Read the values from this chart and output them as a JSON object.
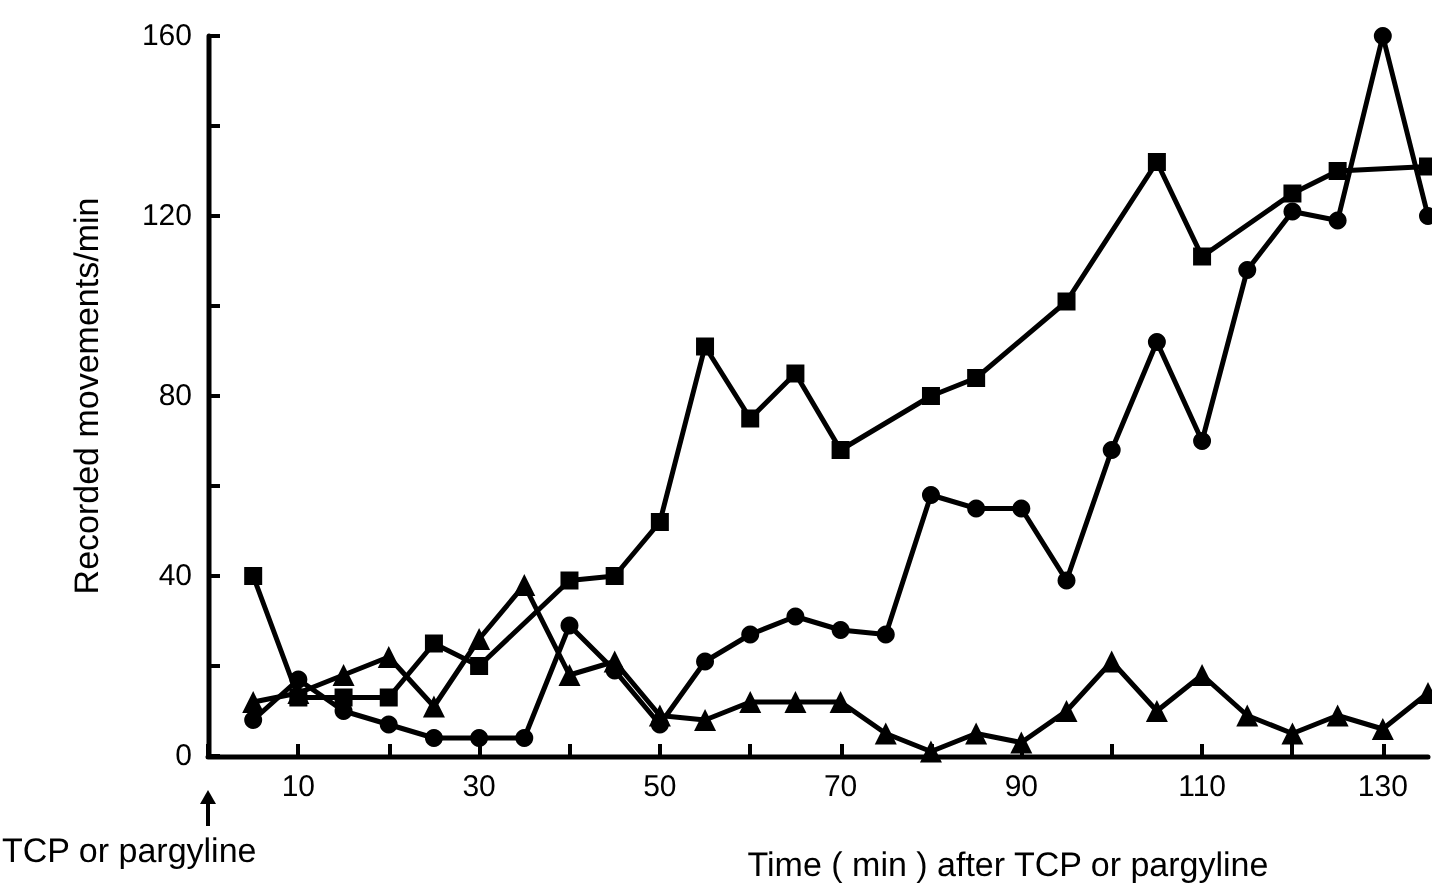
{
  "chart_data": {
    "type": "line",
    "xlabel": "Time ( min ) after TCP or pargyline",
    "ylabel": "Recorded movements/min",
    "xlim": [
      0,
      135
    ],
    "ylim": [
      0,
      160
    ],
    "xticks": [
      {
        "value": 0,
        "label": null
      },
      10,
      {
        "value": 20,
        "label": null
      },
      30,
      {
        "value": 40,
        "label": null
      },
      50,
      {
        "value": 60,
        "label": null
      },
      70,
      {
        "value": 80,
        "label": null
      },
      90,
      {
        "value": 100,
        "label": null
      },
      110,
      {
        "value": 120,
        "label": null
      },
      130
    ],
    "yticks": [
      0,
      {
        "value": 20,
        "label": null
      },
      40,
      {
        "value": 60,
        "label": null
      },
      80,
      {
        "value": 100,
        "label": null
      },
      120,
      {
        "value": 140,
        "label": null
      },
      160
    ],
    "grid": false,
    "line_style": "solid",
    "annotations": [
      "TCP or pargyline"
    ],
    "series": [
      {
        "color": "#000000",
        "marker": "square",
        "x": [
          5,
          10,
          15,
          20,
          25,
          30,
          40,
          45,
          50,
          55,
          60,
          65,
          70,
          80,
          85,
          95,
          105,
          110,
          120,
          125,
          135
        ],
        "values": [
          40,
          13,
          13,
          13,
          25,
          20,
          39,
          40,
          52,
          91,
          75,
          85,
          68,
          80,
          84,
          101,
          132,
          111,
          125,
          130,
          131
        ]
      },
      {
        "color": "#000000",
        "marker": "circle",
        "x": [
          5,
          10,
          15,
          20,
          25,
          30,
          35,
          40,
          45,
          50,
          55,
          60,
          65,
          70,
          75,
          80,
          85,
          90,
          95,
          100,
          105,
          110,
          115,
          120,
          125,
          130,
          135
        ],
        "values": [
          8,
          17,
          10,
          7,
          4,
          4,
          4,
          29,
          19,
          7,
          21,
          27,
          31,
          28,
          27,
          58,
          55,
          55,
          39,
          68,
          92,
          70,
          108,
          121,
          119,
          160,
          120
        ]
      },
      {
        "color": "#000000",
        "marker": "triangle",
        "x": [
          5,
          10,
          15,
          20,
          25,
          30,
          35,
          40,
          45,
          50,
          55,
          60,
          65,
          70,
          75,
          80,
          85,
          90,
          95,
          100,
          105,
          110,
          115,
          120,
          125,
          130,
          135
        ],
        "values": [
          12,
          14,
          18,
          22,
          11,
          26,
          38,
          18,
          21,
          9,
          8,
          12,
          12,
          12,
          5,
          1,
          5,
          3,
          10,
          21,
          10,
          18,
          9,
          5,
          9,
          6,
          14
        ]
      }
    ]
  }
}
